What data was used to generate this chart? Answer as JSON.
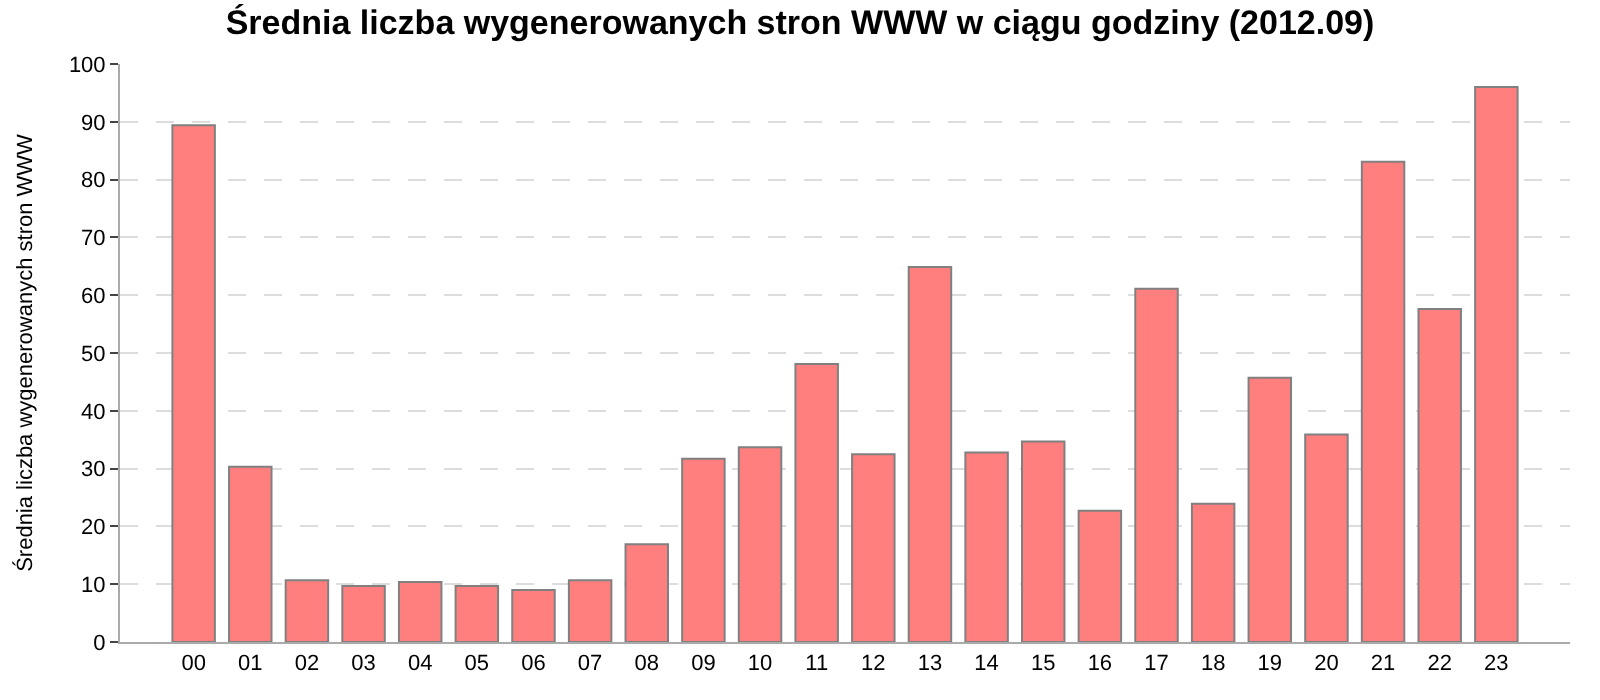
{
  "chart_data": {
    "type": "bar",
    "title": "Średnia liczba wygenerowanych stron WWW w ciągu godziny (2012.09)",
    "ylabel": "Średnia liczba wygenerowanych stron WWW",
    "categories": [
      "00",
      "01",
      "02",
      "03",
      "04",
      "05",
      "06",
      "07",
      "08",
      "09",
      "10",
      "11",
      "12",
      "13",
      "14",
      "15",
      "16",
      "17",
      "18",
      "19",
      "20",
      "21",
      "22",
      "23"
    ],
    "values": [
      89.4,
      30.3,
      10.7,
      9.7,
      10.4,
      9.7,
      9.0,
      10.7,
      16.9,
      31.7,
      33.7,
      48.1,
      32.5,
      64.9,
      32.8,
      34.7,
      22.7,
      61.1,
      23.9,
      45.7,
      35.9,
      83.1,
      57.6,
      96.0
    ],
    "color": "#ff7f7f",
    "ylim": [
      0,
      100
    ],
    "yticks": [
      0,
      10,
      20,
      30,
      40,
      50,
      60,
      70,
      80,
      90,
      100
    ],
    "grid": "y",
    "legend": false
  }
}
